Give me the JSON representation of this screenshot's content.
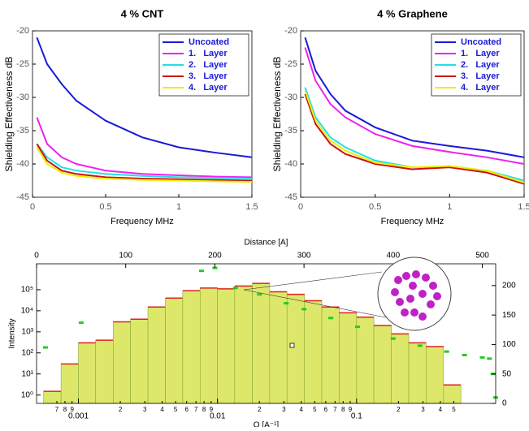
{
  "chart_data": [
    {
      "type": "line",
      "title": "4 % CNT",
      "x_label": "Frequency MHz",
      "y_label": "Shielding Effectiveness dB",
      "x": [
        0.03,
        0.1,
        0.2,
        0.3,
        0.5,
        0.75,
        1.0,
        1.25,
        1.5
      ],
      "xlim": [
        0,
        1.5
      ],
      "xticks": [
        0,
        0.5,
        1,
        1.5
      ],
      "ylim": [
        -45,
        -20
      ],
      "yticks": [
        -45,
        -40,
        -35,
        -30,
        -25,
        -20
      ],
      "legend": "upper right",
      "series": [
        {
          "name": "Uncoated",
          "color": "#1a1ad8",
          "values": [
            -21,
            -25,
            -28,
            -30.5,
            -33.5,
            -36,
            -37.5,
            -38.3,
            -39
          ]
        },
        {
          "name": "1.   Layer",
          "color": "#ee22ee",
          "values": [
            -33,
            -37,
            -39,
            -40,
            -41,
            -41.5,
            -41.7,
            -41.9,
            -42
          ]
        },
        {
          "name": "2.   Layer",
          "color": "#22e0e8",
          "values": [
            -37,
            -39,
            -40.5,
            -41,
            -41.5,
            -41.8,
            -42,
            -42.1,
            -42.2
          ]
        },
        {
          "name": "3.   Layer",
          "color": "#cc1111",
          "values": [
            -37,
            -39.5,
            -41,
            -41.5,
            -42,
            -42.2,
            -42.3,
            -42.4,
            -42.5
          ]
        },
        {
          "name": "4.   Layer",
          "color": "#eeee00",
          "values": [
            -37.5,
            -40,
            -41.3,
            -41.8,
            -42.2,
            -42.4,
            -42.5,
            -42.6,
            -42.7
          ]
        }
      ]
    },
    {
      "type": "line",
      "title": "4 % Graphene",
      "x_label": "Frequency MHz",
      "y_label": "Shielding Effectiveness dB",
      "x": [
        0.03,
        0.1,
        0.2,
        0.3,
        0.5,
        0.75,
        1.0,
        1.25,
        1.5
      ],
      "xlim": [
        0,
        1.5
      ],
      "xticks": [
        0,
        0.5,
        1,
        1.5
      ],
      "ylim": [
        -45,
        -20
      ],
      "yticks": [
        -45,
        -40,
        -35,
        -30,
        -25,
        -20
      ],
      "legend": "upper right",
      "series": [
        {
          "name": "Uncoated",
          "color": "#1a1ad8",
          "values": [
            -21,
            -26,
            -29.5,
            -32,
            -34.5,
            -36.5,
            -37.3,
            -38,
            -39
          ]
        },
        {
          "name": "1.   Layer",
          "color": "#ee22ee",
          "values": [
            -22.5,
            -27.5,
            -31,
            -33,
            -35.5,
            -37.3,
            -38.2,
            -39,
            -40
          ]
        },
        {
          "name": "2.   Layer",
          "color": "#22e0e8",
          "values": [
            -28.5,
            -33,
            -36,
            -37.5,
            -39.5,
            -40.5,
            -40.5,
            -41,
            -42.5
          ]
        },
        {
          "name": "3.   Layer",
          "color": "#cc1111",
          "values": [
            -29.5,
            -34,
            -37,
            -38.5,
            -40,
            -40.8,
            -40.5,
            -41.3,
            -43
          ]
        },
        {
          "name": "4.   Layer",
          "color": "#eeee00",
          "values": [
            -29,
            -33.5,
            -36.5,
            -38,
            -39.8,
            -40.5,
            -40.3,
            -41,
            -42.8
          ]
        }
      ]
    },
    {
      "type": "histogram",
      "x_label": "Q [A⁻¹]",
      "y_label": "Intensity",
      "x2_label": "Distance [A]",
      "xscale": "log",
      "yscale": "log",
      "xlim": [
        0.0005,
        1
      ],
      "ylim": [
        0.4,
        1700000
      ],
      "x2lim": [
        0,
        515
      ],
      "y2lim": [
        0,
        237
      ],
      "xticks": [
        {
          "value": 0.0007,
          "label": "7"
        },
        {
          "value": 0.0008,
          "label": "8"
        },
        {
          "value": 0.0009,
          "label": "9"
        },
        {
          "value": 0.001,
          "label": "0.001"
        },
        {
          "value": 0.002,
          "label": "2"
        },
        {
          "value": 0.003,
          "label": "3"
        },
        {
          "value": 0.004,
          "label": "4"
        },
        {
          "value": 0.005,
          "label": "5"
        },
        {
          "value": 0.006,
          "label": "6"
        },
        {
          "value": 0.007,
          "label": "7"
        },
        {
          "value": 0.008,
          "label": "8"
        },
        {
          "value": 0.009,
          "label": "9"
        },
        {
          "value": 0.01,
          "label": "0.01"
        },
        {
          "value": 0.02,
          "label": "2"
        },
        {
          "value": 0.03,
          "label": "3"
        },
        {
          "value": 0.04,
          "label": "4"
        },
        {
          "value": 0.05,
          "label": "5"
        },
        {
          "value": 0.06,
          "label": "6"
        },
        {
          "value": 0.07,
          "label": "7"
        },
        {
          "value": 0.08,
          "label": "8"
        },
        {
          "value": 0.09,
          "label": "9"
        },
        {
          "value": 0.1,
          "label": "0.1"
        },
        {
          "value": 0.2,
          "label": "2"
        },
        {
          "value": 0.3,
          "label": "3"
        },
        {
          "value": 0.4,
          "label": "4"
        },
        {
          "value": 0.5,
          "label": "5"
        }
      ],
      "yticks": [
        {
          "value": 1,
          "label": "10⁰"
        },
        {
          "value": 10,
          "label": "10¹"
        },
        {
          "value": 100,
          "label": "10²"
        },
        {
          "value": 1000,
          "label": "10³"
        },
        {
          "value": 10000,
          "label": "10⁴"
        },
        {
          "value": 100000,
          "label": "10⁵"
        }
      ],
      "x2ticks": [
        0,
        100,
        200,
        300,
        400,
        500
      ],
      "y2ticks": [
        0,
        50,
        100,
        150,
        200
      ],
      "bins": [
        0.000562,
        0.00075,
        0.001,
        0.00133,
        0.00178,
        0.00237,
        0.00316,
        0.00422,
        0.00562,
        0.0075,
        0.01,
        0.0133,
        0.0178,
        0.0237,
        0.0316,
        0.0422,
        0.0562,
        0.075,
        0.1,
        0.133,
        0.178,
        0.237,
        0.316,
        0.422,
        0.562
      ],
      "values": [
        1.5,
        30,
        300,
        400,
        3000,
        4000,
        15000,
        40000,
        90000,
        120000,
        110000,
        150000,
        200000,
        80000,
        60000,
        30000,
        15000,
        8000,
        5000,
        2000,
        800,
        300,
        200,
        3
      ],
      "color": "#dde86a",
      "series": [
        {
          "color": "#22cc22",
          "axis": "y2",
          "x": [
            10,
            50,
            185,
            200,
            223,
            250,
            280,
            300,
            330,
            360,
            400,
            430,
            460,
            480,
            500,
            508,
            512,
            515
          ],
          "values": [
            95,
            137,
            225,
            230,
            196,
            185,
            170,
            160,
            145,
            130,
            110,
            98,
            88,
            82,
            78,
            76,
            50,
            10
          ]
        }
      ]
    }
  ]
}
